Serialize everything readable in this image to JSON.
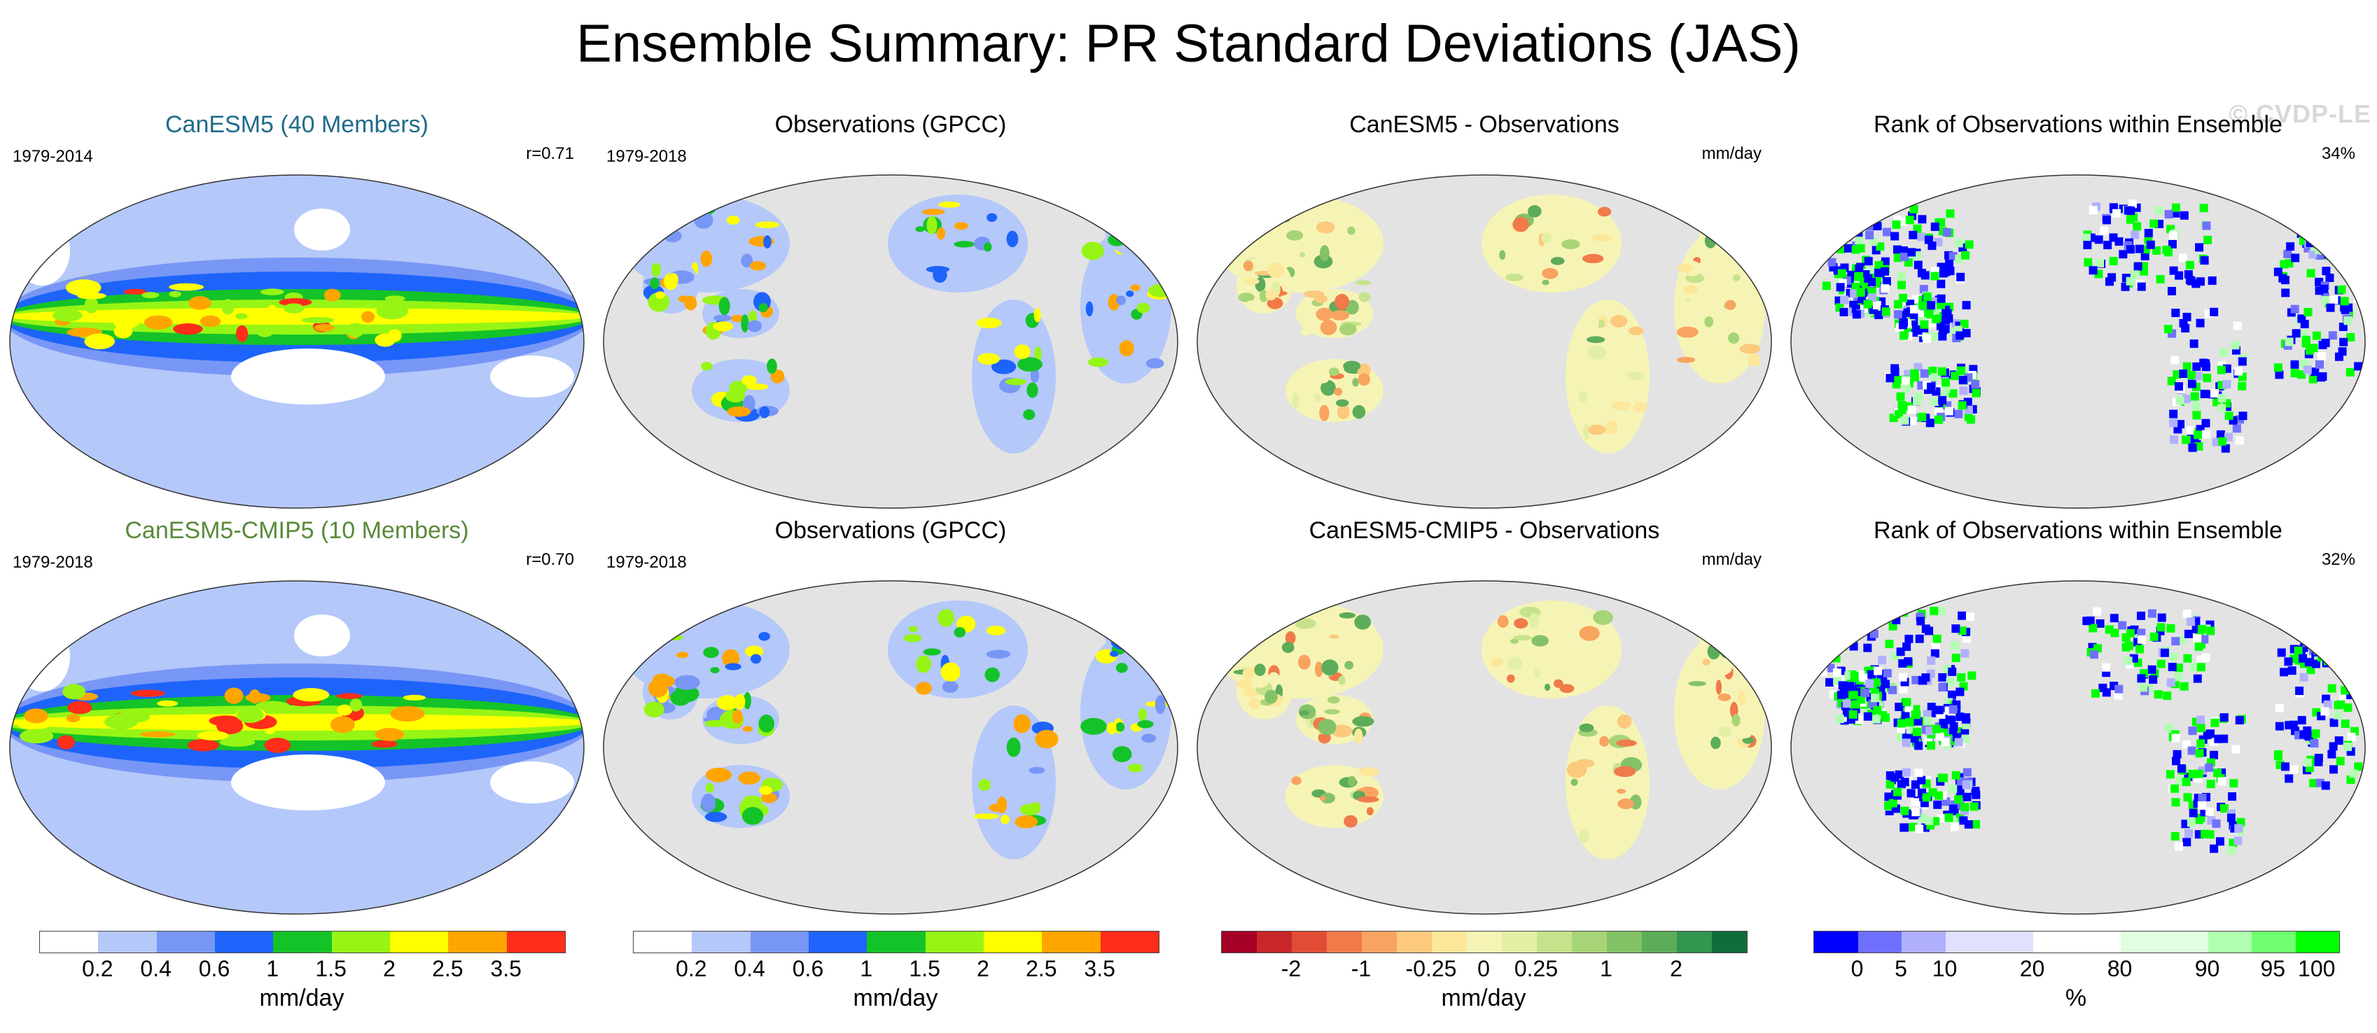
{
  "figure": {
    "title": "Ensemble Summary: PR Standard Deviations (JAS)",
    "watermark": "© CVDP-LE"
  },
  "panels": [
    {
      "title": "CanESM5 (40 Members)",
      "title_color": "#1f6b8a",
      "left": "1979-2014",
      "right": "r=0.71",
      "kind": "model",
      "scale": "stddev"
    },
    {
      "title": "Observations (GPCC)",
      "title_color": "#000000",
      "left": "1979-2018",
      "right": "",
      "kind": "obs",
      "scale": "stddev"
    },
    {
      "title": "CanESM5 - Observations",
      "title_color": "#000000",
      "left": "",
      "right": "mm/day",
      "kind": "diff",
      "scale": "diff"
    },
    {
      "title": "Rank of Observations within Ensemble",
      "title_color": "#000000",
      "left": "",
      "right": "34%",
      "kind": "rank",
      "scale": "rank"
    },
    {
      "title": "CanESM5-CMIP5 (10 Members)",
      "title_color": "#5a8a3a",
      "left": "1979-2018",
      "right": "r=0.70",
      "kind": "model",
      "scale": "stddev"
    },
    {
      "title": "Observations (GPCC)",
      "title_color": "#000000",
      "left": "1979-2018",
      "right": "",
      "kind": "obs",
      "scale": "stddev"
    },
    {
      "title": "CanESM5-CMIP5 - Observations",
      "title_color": "#000000",
      "left": "",
      "right": "mm/day",
      "kind": "diff",
      "scale": "diff"
    },
    {
      "title": "Rank of Observations within Ensemble",
      "title_color": "#000000",
      "left": "",
      "right": "32%",
      "kind": "rank",
      "scale": "rank"
    }
  ],
  "colorbars": [
    {
      "name": "stddev",
      "colors": [
        "#ffffff",
        "#b4c8fa",
        "#7896f5",
        "#1e64fa",
        "#14c328",
        "#96f514",
        "#ffff00",
        "#ffa500",
        "#ff2d19"
      ],
      "ticks": [
        "0.2",
        "0.4",
        "0.6",
        "1",
        "1.5",
        "2",
        "2.5",
        "3.5"
      ],
      "unit": "mm/day"
    },
    {
      "name": "stddev",
      "colors": [
        "#ffffff",
        "#b4c8fa",
        "#7896f5",
        "#1e64fa",
        "#14c328",
        "#96f514",
        "#ffff00",
        "#ffa500",
        "#ff2d19"
      ],
      "ticks": [
        "0.2",
        "0.4",
        "0.6",
        "1",
        "1.5",
        "2",
        "2.5",
        "3.5"
      ],
      "unit": "mm/day"
    },
    {
      "name": "diff",
      "colors": [
        "#a50026",
        "#c8272a",
        "#e04c35",
        "#f07a4a",
        "#f8a460",
        "#fcc97d",
        "#fde79a",
        "#f6f4b5",
        "#e4efa6",
        "#c6e38c",
        "#a7d476",
        "#84c267",
        "#5cac5a",
        "#329550",
        "#0f6d3a"
      ],
      "ticks": [
        "-2",
        "-1",
        "-0.25",
        "0",
        "0.25",
        "1",
        "2"
      ],
      "unit": "mm/day"
    },
    {
      "name": "rank",
      "colors": [
        "#0000ff",
        "#7070ff",
        "#b0b0ff",
        "#e0e0ff",
        "#e0e0ff",
        "#ffffff",
        "#ffffff",
        "#e0ffe0",
        "#e0ffe0",
        "#b0ffb0",
        "#70ff70",
        "#00ff00"
      ],
      "ticks": [
        "0",
        "5",
        "10",
        "20",
        "80",
        "90",
        "95",
        "100"
      ],
      "unit": "%"
    }
  ]
}
